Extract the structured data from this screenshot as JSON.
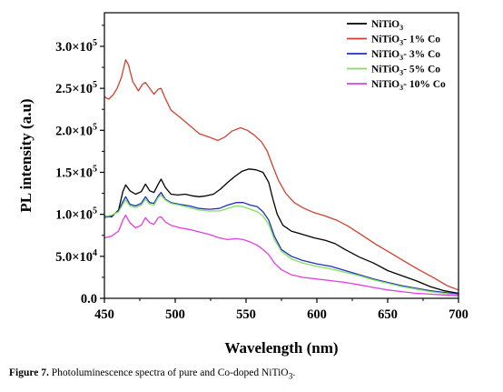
{
  "chart_data": {
    "type": "line",
    "xlabel": "Wavelength (nm)",
    "ylabel": "PL intensity (a.u)",
    "xlim": [
      450,
      700
    ],
    "ylim": [
      0,
      340000
    ],
    "x_ticks": [
      450,
      500,
      550,
      600,
      650,
      700
    ],
    "x_tick_labels": [
      "450",
      "500",
      "550",
      "600",
      "650",
      "700"
    ],
    "y_ticks": [
      0,
      50000,
      100000,
      150000,
      200000,
      250000,
      300000
    ],
    "y_tick_labels": [
      {
        "mantissa": "0.0",
        "exp": ""
      },
      {
        "mantissa": "5.0×10",
        "exp": "4"
      },
      {
        "mantissa": "1.0×10",
        "exp": "5"
      },
      {
        "mantissa": "1.5×10",
        "exp": "5"
      },
      {
        "mantissa": "2.0×10",
        "exp": "5"
      },
      {
        "mantissa": "2.5×10",
        "exp": "5"
      },
      {
        "mantissa": "3.0×10",
        "exp": "5"
      }
    ],
    "grid": false,
    "legend_position": "top-right",
    "series": [
      {
        "name": "NiTiO3",
        "legend_base": "NiTiO",
        "legend_sub": "3",
        "legend_suffix": "",
        "color": "#000000",
        "points": [
          [
            450,
            98000
          ],
          [
            455,
            97000
          ],
          [
            460,
            105000
          ],
          [
            463,
            127000
          ],
          [
            465,
            135000
          ],
          [
            468,
            128000
          ],
          [
            472,
            124000
          ],
          [
            476,
            127000
          ],
          [
            479,
            136000
          ],
          [
            482,
            128000
          ],
          [
            485,
            126000
          ],
          [
            488,
            136000
          ],
          [
            490,
            142000
          ],
          [
            493,
            132000
          ],
          [
            497,
            124000
          ],
          [
            502,
            123000
          ],
          [
            507,
            124000
          ],
          [
            512,
            122000
          ],
          [
            517,
            121000
          ],
          [
            522,
            122000
          ],
          [
            527,
            124000
          ],
          [
            532,
            130000
          ],
          [
            537,
            138000
          ],
          [
            542,
            145000
          ],
          [
            547,
            151000
          ],
          [
            552,
            154000
          ],
          [
            557,
            153000
          ],
          [
            562,
            150000
          ],
          [
            566,
            138000
          ],
          [
            569,
            118000
          ],
          [
            572,
            100000
          ],
          [
            576,
            87000
          ],
          [
            582,
            80000
          ],
          [
            590,
            76000
          ],
          [
            598,
            72000
          ],
          [
            606,
            69000
          ],
          [
            613,
            65000
          ],
          [
            620,
            58000
          ],
          [
            630,
            49000
          ],
          [
            640,
            42000
          ],
          [
            650,
            33000
          ],
          [
            660,
            27000
          ],
          [
            670,
            21000
          ],
          [
            680,
            14000
          ],
          [
            690,
            9000
          ],
          [
            700,
            6000
          ]
        ]
      },
      {
        "name": "NiTiO3- 1% Co",
        "legend_base": "NiTiO",
        "legend_sub": "3",
        "legend_suffix": "- 1% Co",
        "color": "#d3402f",
        "points": [
          [
            450,
            240000
          ],
          [
            453,
            237000
          ],
          [
            456,
            242000
          ],
          [
            459,
            250000
          ],
          [
            462,
            263000
          ],
          [
            465,
            284000
          ],
          [
            467,
            278000
          ],
          [
            470,
            258000
          ],
          [
            474,
            247000
          ],
          [
            477,
            255000
          ],
          [
            479,
            257000
          ],
          [
            482,
            250000
          ],
          [
            485,
            243000
          ],
          [
            488,
            249000
          ],
          [
            490,
            250000
          ],
          [
            493,
            238000
          ],
          [
            497,
            224000
          ],
          [
            503,
            216000
          ],
          [
            510,
            206000
          ],
          [
            517,
            196000
          ],
          [
            524,
            192000
          ],
          [
            530,
            188000
          ],
          [
            535,
            192000
          ],
          [
            540,
            199000
          ],
          [
            546,
            203000
          ],
          [
            551,
            200000
          ],
          [
            556,
            194000
          ],
          [
            561,
            186000
          ],
          [
            565,
            175000
          ],
          [
            569,
            157000
          ],
          [
            573,
            140000
          ],
          [
            578,
            125000
          ],
          [
            584,
            114000
          ],
          [
            590,
            108000
          ],
          [
            598,
            102000
          ],
          [
            606,
            98000
          ],
          [
            614,
            93000
          ],
          [
            622,
            86000
          ],
          [
            632,
            75000
          ],
          [
            642,
            64000
          ],
          [
            652,
            54000
          ],
          [
            662,
            44000
          ],
          [
            672,
            34000
          ],
          [
            682,
            25000
          ],
          [
            692,
            15000
          ],
          [
            700,
            10000
          ]
        ]
      },
      {
        "name": "NiTiO3- 3% Co",
        "legend_base": "NiTiO",
        "legend_sub": "3",
        "legend_suffix": "- 3% Co",
        "color": "#1f2fbf",
        "points": [
          [
            450,
            96000
          ],
          [
            455,
            98000
          ],
          [
            460,
            104000
          ],
          [
            463,
            115000
          ],
          [
            465,
            121000
          ],
          [
            468,
            112000
          ],
          [
            472,
            110000
          ],
          [
            476,
            113000
          ],
          [
            479,
            121000
          ],
          [
            482,
            114000
          ],
          [
            485,
            113000
          ],
          [
            488,
            122000
          ],
          [
            490,
            126000
          ],
          [
            493,
            118000
          ],
          [
            497,
            114000
          ],
          [
            503,
            112000
          ],
          [
            510,
            110000
          ],
          [
            517,
            107000
          ],
          [
            524,
            106000
          ],
          [
            531,
            107000
          ],
          [
            537,
            111000
          ],
          [
            543,
            114000
          ],
          [
            548,
            114000
          ],
          [
            553,
            111000
          ],
          [
            558,
            109000
          ],
          [
            562,
            103000
          ],
          [
            566,
            93000
          ],
          [
            570,
            74000
          ],
          [
            575,
            58000
          ],
          [
            582,
            50000
          ],
          [
            590,
            45000
          ],
          [
            600,
            41000
          ],
          [
            610,
            38000
          ],
          [
            620,
            33000
          ],
          [
            630,
            28000
          ],
          [
            640,
            23000
          ],
          [
            650,
            19000
          ],
          [
            660,
            15000
          ],
          [
            670,
            12000
          ],
          [
            680,
            9000
          ],
          [
            690,
            7000
          ],
          [
            700,
            5000
          ]
        ]
      },
      {
        "name": "NiTiO3- 5% Co",
        "legend_base": "NiTiO",
        "legend_sub": "3",
        "legend_suffix": "- 5% Co",
        "color": "#7ee25e",
        "points": [
          [
            450,
            97000
          ],
          [
            455,
            99000
          ],
          [
            460,
            103000
          ],
          [
            463,
            112000
          ],
          [
            465,
            117000
          ],
          [
            468,
            110000
          ],
          [
            472,
            108000
          ],
          [
            476,
            111000
          ],
          [
            479,
            118000
          ],
          [
            482,
            112000
          ],
          [
            485,
            111000
          ],
          [
            488,
            120000
          ],
          [
            490,
            123000
          ],
          [
            493,
            117000
          ],
          [
            497,
            113000
          ],
          [
            503,
            111000
          ],
          [
            510,
            108000
          ],
          [
            517,
            105000
          ],
          [
            524,
            104000
          ],
          [
            531,
            104000
          ],
          [
            537,
            107000
          ],
          [
            543,
            110000
          ],
          [
            548,
            109000
          ],
          [
            553,
            106000
          ],
          [
            558,
            103000
          ],
          [
            562,
            98000
          ],
          [
            566,
            88000
          ],
          [
            570,
            70000
          ],
          [
            575,
            56000
          ],
          [
            582,
            47000
          ],
          [
            590,
            42000
          ],
          [
            600,
            38000
          ],
          [
            610,
            35000
          ],
          [
            620,
            31000
          ],
          [
            630,
            27000
          ],
          [
            640,
            22000
          ],
          [
            650,
            18000
          ],
          [
            660,
            14000
          ],
          [
            670,
            11000
          ],
          [
            680,
            8000
          ],
          [
            690,
            6000
          ],
          [
            700,
            4000
          ]
        ]
      },
      {
        "name": "NiTiO3- 10% Co",
        "legend_base": "NiTiO",
        "legend_sub": "3",
        "legend_suffix": "- 10% Co",
        "color": "#e23ee0",
        "points": [
          [
            450,
            72000
          ],
          [
            455,
            74000
          ],
          [
            460,
            80000
          ],
          [
            463,
            93000
          ],
          [
            465,
            99000
          ],
          [
            468,
            90000
          ],
          [
            472,
            84000
          ],
          [
            476,
            87000
          ],
          [
            479,
            96000
          ],
          [
            482,
            90000
          ],
          [
            485,
            88000
          ],
          [
            488,
            96000
          ],
          [
            490,
            97000
          ],
          [
            493,
            91000
          ],
          [
            497,
            87000
          ],
          [
            503,
            84000
          ],
          [
            510,
            82000
          ],
          [
            517,
            79000
          ],
          [
            524,
            76000
          ],
          [
            531,
            72000
          ],
          [
            537,
            70000
          ],
          [
            543,
            71000
          ],
          [
            548,
            70000
          ],
          [
            553,
            67000
          ],
          [
            558,
            63000
          ],
          [
            562,
            58000
          ],
          [
            566,
            52000
          ],
          [
            570,
            42000
          ],
          [
            575,
            34000
          ],
          [
            582,
            28000
          ],
          [
            590,
            25000
          ],
          [
            600,
            23000
          ],
          [
            610,
            21000
          ],
          [
            620,
            19000
          ],
          [
            630,
            16000
          ],
          [
            640,
            13000
          ],
          [
            650,
            10000
          ],
          [
            660,
            8000
          ],
          [
            670,
            6000
          ],
          [
            680,
            5000
          ],
          [
            690,
            4000
          ],
          [
            700,
            3000
          ]
        ]
      }
    ]
  },
  "caption": {
    "label": "Figure 7.",
    "text_before": " Photoluminescence spectra of pure and Co-doped NiTiO",
    "sub": "3",
    "text_after": "."
  }
}
